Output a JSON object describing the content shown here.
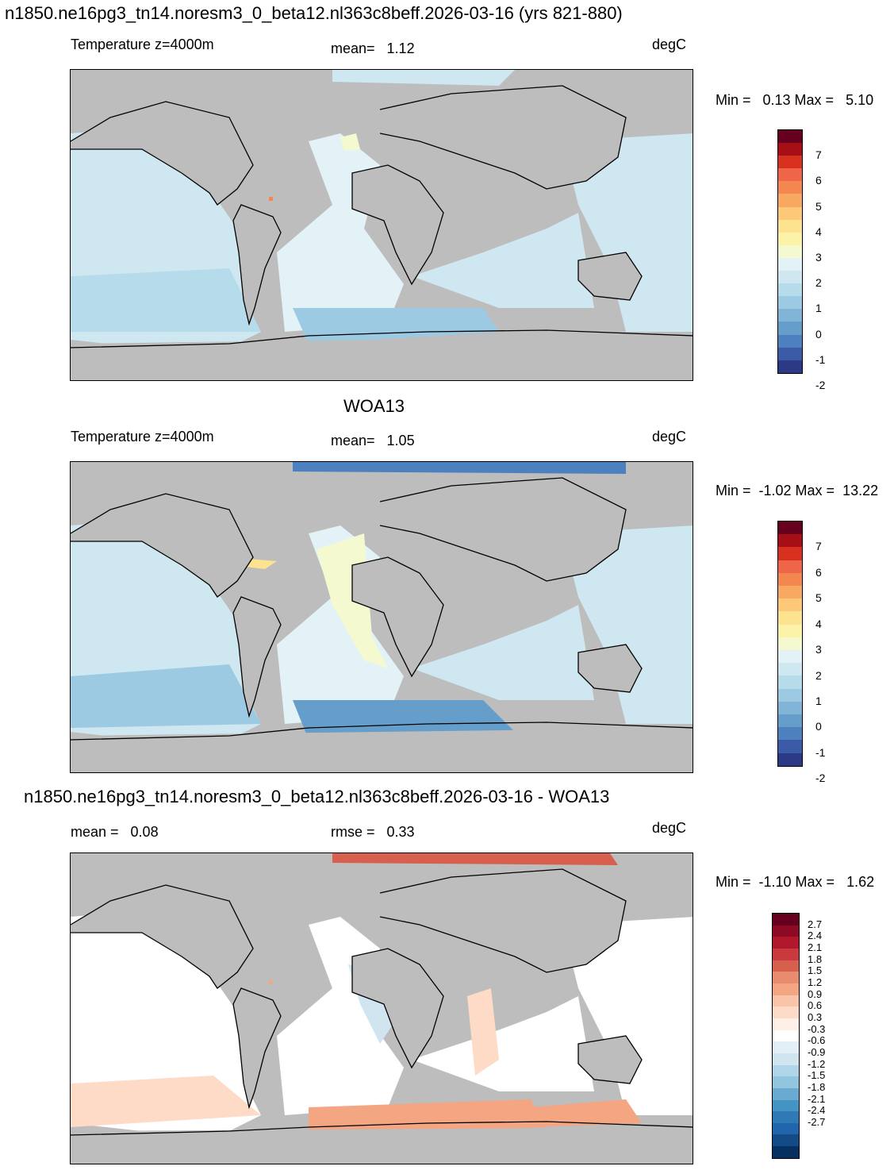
{
  "header": {
    "title": "n1850.ne16pg3_tn14.noresm3_0_beta12.nl363c8beff.2026-03-16 (yrs 821-880)"
  },
  "panel1": {
    "variable": "Temperature z=4000m",
    "mean_text": "mean=   1.12",
    "units": "degC",
    "minmax": "Min =   0.13 Max =   5.10"
  },
  "panel2": {
    "title": "WOA13",
    "variable": "Temperature z=4000m",
    "mean_text": "mean=   1.05",
    "units": "degC",
    "minmax": "Min =  -1.02 Max =  13.22"
  },
  "panel3": {
    "title": "n1850.ne16pg3_tn14.noresm3_0_beta12.nl363c8beff.2026-03-16 - WOA13",
    "mean_text": "mean =   0.08",
    "rmse_text": "rmse =   0.33",
    "units": "degC",
    "minmax": "Min =  -1.10 Max =   1.62"
  },
  "colorbar_abs": {
    "labels": [
      "7",
      "6",
      "5",
      "4",
      "3",
      "2",
      "1",
      "0",
      "-1",
      "-2"
    ],
    "colors": [
      "#67001f",
      "#a50f15",
      "#d7301f",
      "#ef6548",
      "#f4874f",
      "#f9a862",
      "#fdc979",
      "#fde28f",
      "#fdf3a8",
      "#f5f9cf",
      "#e3f2f7",
      "#cfe7f1",
      "#b6dbea",
      "#9bcae2",
      "#80b5d8",
      "#659ecb",
      "#4c80be",
      "#3b5ba8",
      "#2c3a86"
    ]
  },
  "colorbar_diff": {
    "labels": [
      "2.7",
      "2.4",
      "2.1",
      "1.8",
      "1.5",
      "1.2",
      "0.9",
      "0.6",
      "0.3",
      "-0.3",
      "-0.6",
      "-0.9",
      "-1.2",
      "-1.5",
      "-1.8",
      "-2.1",
      "-2.4",
      "-2.7"
    ],
    "colors": [
      "#67001f",
      "#8c0a23",
      "#b2182b",
      "#c9393d",
      "#d6604d",
      "#e98b6e",
      "#f4a582",
      "#f9c4a8",
      "#fddbc7",
      "#fef0e7",
      "#ffffff",
      "#e3eff6",
      "#d1e5f0",
      "#b0d4e8",
      "#92c5de",
      "#6aa9d0",
      "#4393c3",
      "#2f79b5",
      "#2166ac",
      "#134b87",
      "#053061"
    ]
  },
  "colors": {
    "land": "#bdbdbd",
    "coast": "#000000"
  }
}
